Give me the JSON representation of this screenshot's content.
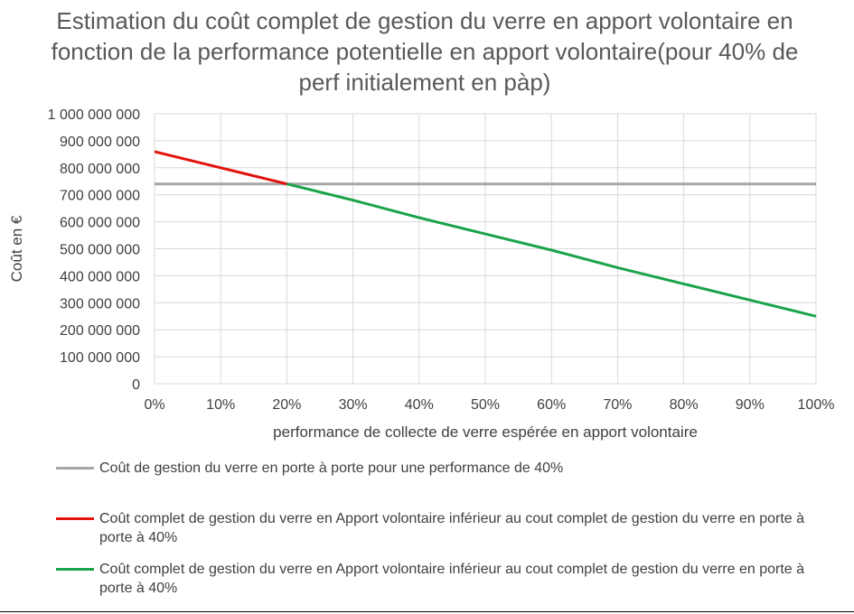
{
  "chart_data": {
    "type": "line",
    "title": "Estimation du coût complet de gestion du verre en apport volontaire en fonction de la performance potentielle en apport volontaire(pour 40% de perf initialement en pàp)",
    "xlabel": "performance de collecte de verre espérée en apport volontaire",
    "ylabel": "Coût en €",
    "xlim": [
      0,
      100
    ],
    "ylim": [
      0,
      1000000000
    ],
    "x_ticks": [
      "0%",
      "10%",
      "20%",
      "30%",
      "40%",
      "50%",
      "60%",
      "70%",
      "80%",
      "90%",
      "100%"
    ],
    "y_ticks": [
      "0",
      "100 000 000",
      "200 000 000",
      "300 000 000",
      "400 000 000",
      "500 000 000",
      "600 000 000",
      "700 000 000",
      "800 000 000",
      "900 000 000",
      "1 000 000 000"
    ],
    "grid": true,
    "legend_position": "bottom",
    "series": [
      {
        "name": "Coût de gestion du verre en porte à porte pour une performance de 40%",
        "color": "#a6a6a6",
        "x": [
          0,
          100
        ],
        "values": [
          740000000,
          740000000
        ]
      },
      {
        "name": "Coût complet de gestion du verre en Apport volontaire inférieur au cout complet de gestion du verre en porte à porte à 40%",
        "color": "#e3120b",
        "x": [
          0,
          10,
          20
        ],
        "values": [
          860000000,
          800000000,
          740000000
        ]
      },
      {
        "name": "Coût complet de gestion du verre en Apport volontaire inférieur au cout complet de gestion du verre en porte à porte à 40%",
        "color": "#1aa34a",
        "x": [
          20,
          30,
          40,
          50,
          60,
          70,
          80,
          90,
          100
        ],
        "values": [
          740000000,
          680000000,
          615000000,
          555000000,
          495000000,
          430000000,
          370000000,
          310000000,
          250000000
        ]
      }
    ]
  }
}
